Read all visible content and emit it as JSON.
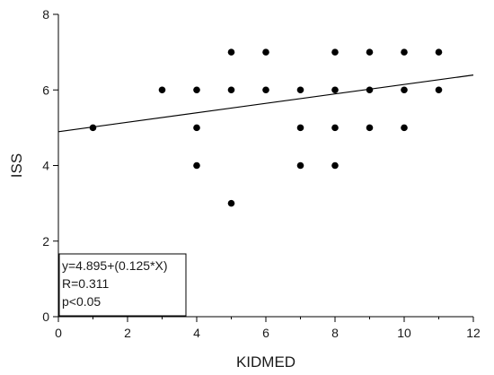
{
  "chart_data": {
    "type": "scatter",
    "xlabel": "KIDMED",
    "ylabel": "ISS",
    "xlim": [
      0,
      12
    ],
    "ylim": [
      0,
      8
    ],
    "xticks": [
      0,
      2,
      4,
      6,
      8,
      10,
      12
    ],
    "yticks": [
      0,
      2,
      4,
      6,
      8
    ],
    "grid": false,
    "points": [
      {
        "x": 1,
        "y": 5
      },
      {
        "x": 3,
        "y": 6
      },
      {
        "x": 4,
        "y": 6
      },
      {
        "x": 4,
        "y": 5
      },
      {
        "x": 4,
        "y": 4
      },
      {
        "x": 5,
        "y": 7
      },
      {
        "x": 5,
        "y": 6
      },
      {
        "x": 5,
        "y": 3
      },
      {
        "x": 6,
        "y": 7
      },
      {
        "x": 6,
        "y": 6
      },
      {
        "x": 7,
        "y": 6
      },
      {
        "x": 7,
        "y": 5
      },
      {
        "x": 7,
        "y": 4
      },
      {
        "x": 8,
        "y": 7
      },
      {
        "x": 8,
        "y": 6
      },
      {
        "x": 8,
        "y": 5
      },
      {
        "x": 8,
        "y": 4
      },
      {
        "x": 9,
        "y": 7
      },
      {
        "x": 9,
        "y": 6
      },
      {
        "x": 9,
        "y": 5
      },
      {
        "x": 10,
        "y": 7
      },
      {
        "x": 10,
        "y": 6
      },
      {
        "x": 10,
        "y": 5
      },
      {
        "x": 11,
        "y": 7
      },
      {
        "x": 11,
        "y": 6
      }
    ],
    "regression": {
      "intercept": 4.895,
      "slope": 0.125
    },
    "annotation_lines": [
      "y=4.895+(0.125*X)",
      "R=0.311",
      "p<0.05"
    ],
    "annotation_placement": "bottom-left"
  }
}
